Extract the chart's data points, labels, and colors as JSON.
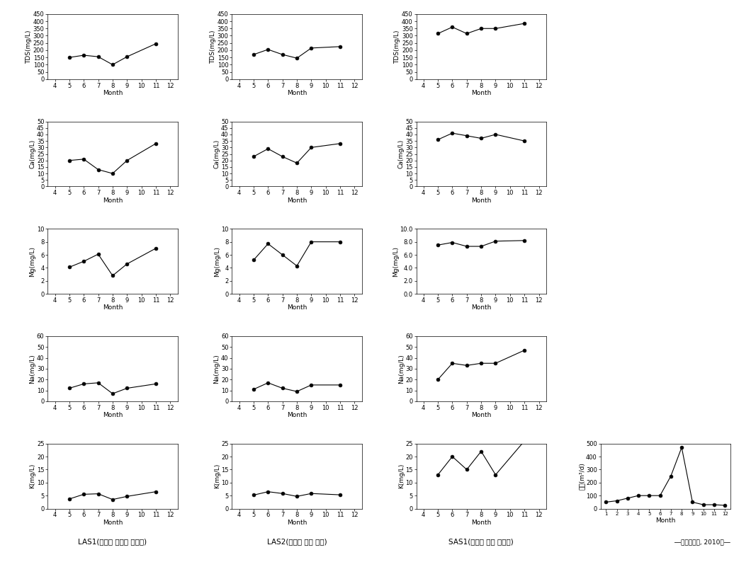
{
  "months_main": [
    5,
    6,
    7,
    8,
    9,
    11
  ],
  "months_last": [
    1,
    2,
    3,
    4,
    5,
    6,
    7,
    8,
    9,
    10,
    11,
    12
  ],
  "LAS1_TDS": [
    150,
    165,
    155,
    100,
    155,
    245
  ],
  "LAS2_TDS": [
    170,
    205,
    170,
    145,
    215,
    225
  ],
  "SAS1_TDS": [
    315,
    360,
    315,
    350,
    350,
    385
  ],
  "LAS1_Ca": [
    20,
    21,
    13,
    10,
    20,
    33
  ],
  "LAS2_Ca": [
    23,
    29,
    23,
    18,
    30,
    33
  ],
  "SAS1_Ca": [
    36,
    41,
    39,
    37,
    40,
    35
  ],
  "LAS1_Mg": [
    4.1,
    5.0,
    6.1,
    2.8,
    4.6,
    7.0
  ],
  "LAS2_Mg": [
    5.2,
    7.7,
    6.0,
    4.3,
    8.0,
    8.0
  ],
  "SAS1_Mg": [
    7.5,
    7.9,
    7.3,
    7.3,
    8.1,
    8.2
  ],
  "LAS1_Na": [
    12,
    16,
    17,
    7,
    12,
    16
  ],
  "LAS2_Na": [
    11,
    17,
    12,
    9,
    15,
    15
  ],
  "SAS1_Na": [
    20,
    35,
    33,
    35,
    35,
    47
  ],
  "LAS1_K": [
    3.7,
    5.5,
    5.7,
    3.5,
    4.7,
    6.5
  ],
  "LAS2_K": [
    5.2,
    6.5,
    5.8,
    4.7,
    5.8,
    5.3
  ],
  "SAS1_K": [
    13,
    20,
    15,
    22,
    13,
    26
  ],
  "SAS1_discharge": [
    50,
    60,
    80,
    100,
    100,
    100,
    250,
    470,
    50,
    30,
    30,
    25
  ],
  "col_label_1": "LAS1(서운면 신초리 하천수)",
  "col_label_2": "LAS2(대덕면 죽리 한천)",
  "col_label_3": "SAS1(대덕면 죽리 방류수)",
  "credit": "―이전기사다, 2010년―",
  "ylim_TDS": [
    0,
    450
  ],
  "ylim_Ca": [
    0,
    50
  ],
  "ylim_Mg_LAS": [
    0,
    10
  ],
  "ylim_Mg_SAS": [
    0.0,
    10.0
  ],
  "ylim_Na": [
    0,
    60
  ],
  "ylim_K": [
    0,
    25
  ],
  "ylim_discharge": [
    0,
    500
  ],
  "yticks_TDS": [
    0,
    50,
    100,
    150,
    200,
    250,
    300,
    350,
    400,
    450
  ],
  "yticks_Ca": [
    0,
    5,
    10,
    15,
    20,
    25,
    30,
    35,
    40,
    45,
    50
  ],
  "yticks_Mg_LAS": [
    0,
    2,
    4,
    6,
    8,
    10
  ],
  "yticks_Mg_SAS": [
    0.0,
    2.0,
    4.0,
    6.0,
    8.0,
    10.0
  ],
  "yticks_Na": [
    0,
    10,
    20,
    30,
    40,
    50,
    60
  ],
  "yticks_K": [
    0,
    5,
    10,
    15,
    20,
    25
  ],
  "yticks_discharge": [
    0,
    100,
    200,
    300,
    400,
    500
  ],
  "ylabel_TDS": "TDS(mg/L)",
  "ylabel_Ca": "Ca(mg/L)",
  "ylabel_Mg_LAS": "Mg(mg/L)",
  "ylabel_Mg_SAS": "Mg(mg/L)",
  "ylabel_Na": "Na(mg/L)",
  "ylabel_K": "K(mg/L)",
  "ylabel_discharge": "유량(m³/d)",
  "xlabel": "Month",
  "xticks_main": [
    4,
    5,
    6,
    7,
    8,
    9,
    10,
    11,
    12
  ],
  "xticks_discharge": [
    1,
    2,
    3,
    4,
    5,
    6,
    7,
    8,
    9,
    10,
    11,
    12
  ]
}
